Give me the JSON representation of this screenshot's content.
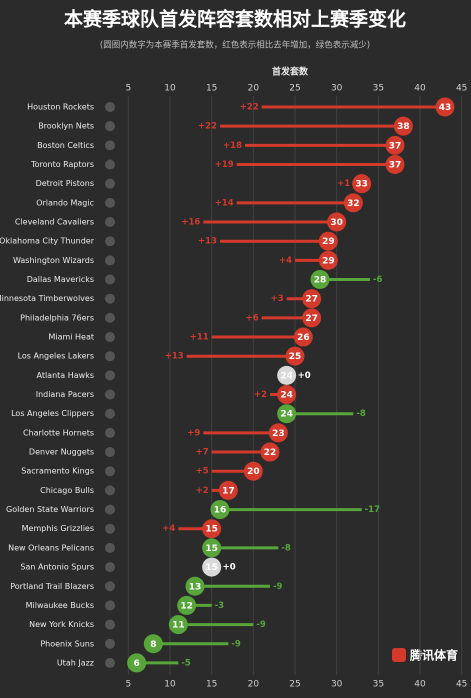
{
  "chart_data": {
    "type": "dumbbell",
    "title": "本赛季球队首发阵容套数相对上赛季变化",
    "subtitle": "(圆圈内数字为本赛季首发套数，红色表示相比去年增加，绿色表示减少)",
    "x_label": "首发套数",
    "watermark": "腾讯体育",
    "categories": [
      "Houston Rockets",
      "Brooklyn Nets",
      "Boston Celtics",
      "Toronto Raptors",
      "Detroit Pistons",
      "Orlando Magic",
      "Cleveland Cavaliers",
      "Oklahoma City Thunder",
      "Washington Wizards",
      "Dallas Mavericks",
      "Minnesota Timberwolves",
      "Philadelphia 76ers",
      "Miami Heat",
      "Los Angeles Lakers",
      "Atlanta Hawks",
      "Indiana Pacers",
      "Los Angeles Clippers",
      "Charlotte Hornets",
      "Denver Nuggets",
      "Sacramento Kings",
      "Chicago Bulls",
      "Golden State Warriors",
      "Memphis Grizzlies",
      "New Orleans Pelicans",
      "San Antonio Spurs",
      "Portland Trail Blazers",
      "Milwaukee Bucks",
      "New York Knicks",
      "Phoenix Suns",
      "Utah Jazz"
    ],
    "values": [
      43,
      38,
      37,
      37,
      33,
      32,
      30,
      29,
      29,
      28,
      27,
      27,
      26,
      25,
      24,
      24,
      24,
      23,
      22,
      20,
      17,
      16,
      15,
      15,
      15,
      13,
      12,
      11,
      8,
      6
    ],
    "changes": [
      22,
      22,
      18,
      19,
      1,
      14,
      16,
      13,
      4,
      -6,
      3,
      6,
      11,
      13,
      0,
      2,
      -8,
      9,
      7,
      5,
      2,
      -17,
      4,
      -8,
      0,
      -9,
      -3,
      -9,
      -9,
      -5
    ],
    "change_labels": [
      "+22",
      "+22",
      "+18",
      "+19",
      "+1",
      "+14",
      "+16",
      "+13",
      "+4",
      "-6",
      "+3",
      "+6",
      "+11",
      "+13",
      "+0",
      "+2",
      "-8",
      "+9",
      "+7",
      "+5",
      "+2",
      "-17",
      "+4",
      "-8",
      "+0",
      "-9",
      "-3",
      "-9",
      "-9",
      "-5"
    ],
    "increase_color": "#d33a2c",
    "decrease_color": "#58a53b",
    "zero_color": "#d9d9d9",
    "xlim": [
      4,
      46
    ],
    "xticks": [
      5,
      10,
      15,
      20,
      25,
      30,
      35,
      40,
      45
    ],
    "grid": true
  }
}
